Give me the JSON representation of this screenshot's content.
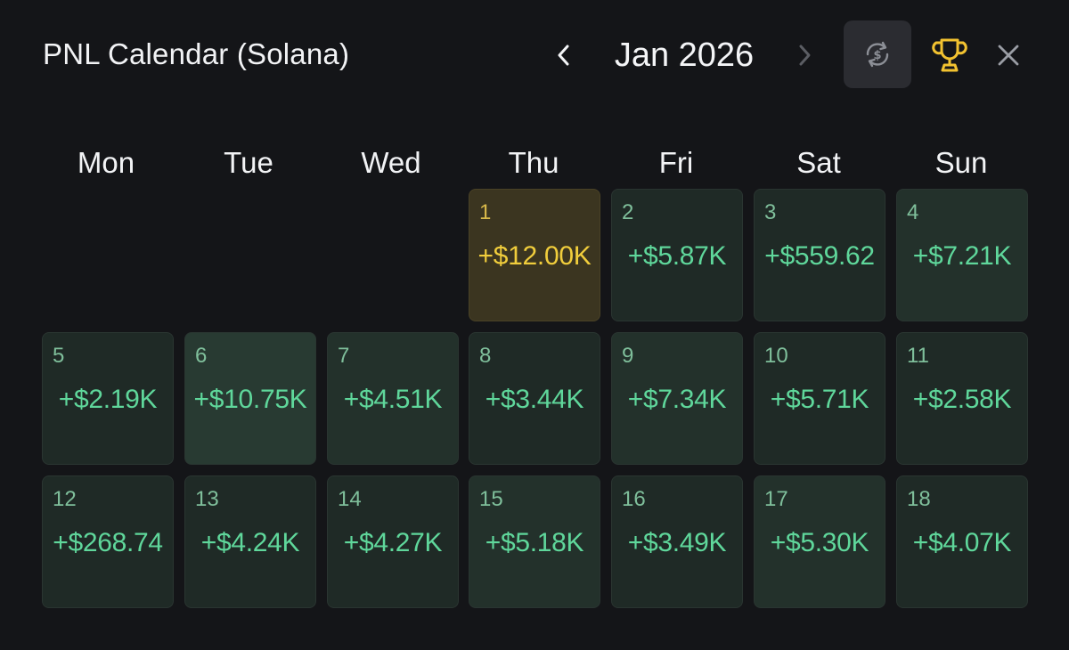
{
  "header": {
    "title": "PNL Calendar (Solana)",
    "month_label": "Jan 2026",
    "prev_icon": "chevron-left-icon",
    "next_icon": "chevron-right-icon",
    "currency_toggle_icon": "currency-swap-icon",
    "trophy_icon": "trophy-icon",
    "close_icon": "close-icon",
    "colors": {
      "trophy": "#f2c230",
      "nav_active": "#f4f5f7",
      "nav_disabled": "#5b5d63"
    }
  },
  "weekdays": [
    "Mon",
    "Tue",
    "Wed",
    "Thu",
    "Fri",
    "Sat",
    "Sun"
  ],
  "colors": {
    "positive": "#5fd79b",
    "top_day": "#f0cd3c",
    "background": "#141518"
  },
  "days": [
    {
      "day": "1",
      "pnl": "+$12.00K",
      "highlight": true
    },
    {
      "day": "2",
      "pnl": "+$5.87K"
    },
    {
      "day": "3",
      "pnl": "+$559.62"
    },
    {
      "day": "4",
      "pnl": "+$7.21K"
    },
    {
      "day": "5",
      "pnl": "+$2.19K"
    },
    {
      "day": "6",
      "pnl": "+$10.75K"
    },
    {
      "day": "7",
      "pnl": "+$4.51K"
    },
    {
      "day": "8",
      "pnl": "+$3.44K"
    },
    {
      "day": "9",
      "pnl": "+$7.34K"
    },
    {
      "day": "10",
      "pnl": "+$5.71K"
    },
    {
      "day": "11",
      "pnl": "+$2.58K"
    },
    {
      "day": "12",
      "pnl": "+$268.74"
    },
    {
      "day": "13",
      "pnl": "+$4.24K"
    },
    {
      "day": "14",
      "pnl": "+$4.27K"
    },
    {
      "day": "15",
      "pnl": "+$5.18K"
    },
    {
      "day": "16",
      "pnl": "+$3.49K"
    },
    {
      "day": "17",
      "pnl": "+$5.30K"
    },
    {
      "day": "18",
      "pnl": "+$4.07K"
    }
  ]
}
